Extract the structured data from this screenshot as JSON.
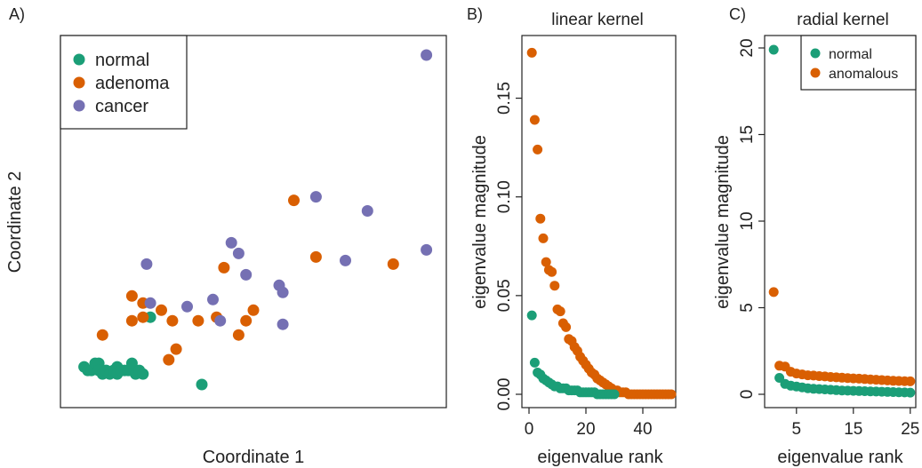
{
  "colors": {
    "normal": "#1b9e77",
    "adenoma": "#d95f02",
    "cancer": "#7570b3",
    "anomalous": "#d95f02"
  },
  "chart_data": [
    {
      "type": "scatter",
      "panel_label": "A)",
      "title": "",
      "xlabel": "Coordinate 1",
      "ylabel": "Coordinate 2",
      "legend_position": "top-left",
      "xlim": [
        0,
        100
      ],
      "ylim": [
        0,
        100
      ],
      "series": [
        {
          "name": "normal",
          "color": "#1b9e77",
          "points": [
            [
              4,
              9
            ],
            [
              5,
              8
            ],
            [
              6,
              8
            ],
            [
              7,
              10
            ],
            [
              8,
              10
            ],
            [
              8,
              8
            ],
            [
              9,
              7
            ],
            [
              10,
              8
            ],
            [
              11,
              7
            ],
            [
              12,
              8
            ],
            [
              13,
              9
            ],
            [
              13,
              7
            ],
            [
              14,
              8
            ],
            [
              15,
              8
            ],
            [
              16,
              8
            ],
            [
              17,
              10
            ],
            [
              18,
              7
            ],
            [
              19,
              8
            ],
            [
              20,
              7
            ],
            [
              22,
              23
            ],
            [
              36,
              4
            ]
          ]
        },
        {
          "name": "adenoma",
          "color": "#d95f02",
          "points": [
            [
              9,
              18
            ],
            [
              17,
              29
            ],
            [
              17,
              22
            ],
            [
              20,
              23
            ],
            [
              20,
              27
            ],
            [
              25,
              25
            ],
            [
              27,
              11
            ],
            [
              28,
              22
            ],
            [
              29,
              14
            ],
            [
              35,
              22
            ],
            [
              40,
              23
            ],
            [
              42,
              37
            ],
            [
              46,
              18
            ],
            [
              48,
              22
            ],
            [
              50,
              25
            ],
            [
              61,
              56
            ],
            [
              67,
              40
            ],
            [
              88,
              38
            ]
          ]
        },
        {
          "name": "cancer",
          "color": "#7570b3",
          "points": [
            [
              21,
              38
            ],
            [
              22,
              27
            ],
            [
              32,
              26
            ],
            [
              39,
              28
            ],
            [
              41,
              22
            ],
            [
              44,
              44
            ],
            [
              46,
              41
            ],
            [
              48,
              35
            ],
            [
              57,
              32
            ],
            [
              58,
              30
            ],
            [
              58,
              21
            ],
            [
              67,
              57
            ],
            [
              75,
              39
            ],
            [
              81,
              53
            ],
            [
              97,
              42
            ],
            [
              97,
              97
            ]
          ]
        }
      ]
    },
    {
      "type": "scatter",
      "panel_label": "B)",
      "title": "linear kernel",
      "xlabel": "eigenvalue rank",
      "ylabel": "eigenvalue magnitude",
      "xlim": [
        0,
        50
      ],
      "ylim": [
        0,
        0.175
      ],
      "xticks": [
        "0",
        "20",
        "40"
      ],
      "yticks": [
        "0.00",
        "0.05",
        "0.10",
        "0.15"
      ],
      "series": [
        {
          "name": "anomalous",
          "color": "#d95f02",
          "points": [
            [
              1,
              0.173
            ],
            [
              2,
              0.139
            ],
            [
              3,
              0.124
            ],
            [
              4,
              0.089
            ],
            [
              5,
              0.079
            ],
            [
              6,
              0.067
            ],
            [
              7,
              0.063
            ],
            [
              8,
              0.062
            ],
            [
              9,
              0.055
            ],
            [
              10,
              0.043
            ],
            [
              11,
              0.042
            ],
            [
              12,
              0.036
            ],
            [
              13,
              0.034
            ],
            [
              14,
              0.028
            ],
            [
              15,
              0.027
            ],
            [
              16,
              0.024
            ],
            [
              17,
              0.022
            ],
            [
              18,
              0.019
            ],
            [
              19,
              0.017
            ],
            [
              20,
              0.015
            ],
            [
              21,
              0.013
            ],
            [
              22,
              0.011
            ],
            [
              23,
              0.01
            ],
            [
              24,
              0.008
            ],
            [
              25,
              0.007
            ],
            [
              26,
              0.006
            ],
            [
              27,
              0.005
            ],
            [
              28,
              0.004
            ],
            [
              29,
              0.003
            ],
            [
              30,
              0.002
            ],
            [
              31,
              0.002
            ],
            [
              32,
              0.001
            ],
            [
              33,
              0.001
            ],
            [
              34,
              0.001
            ],
            [
              35,
              0.0
            ],
            [
              36,
              0.0
            ],
            [
              37,
              0.0
            ],
            [
              38,
              0.0
            ],
            [
              39,
              0.0
            ],
            [
              40,
              0.0
            ],
            [
              41,
              0.0
            ],
            [
              42,
              0.0
            ],
            [
              43,
              0.0
            ],
            [
              44,
              0.0
            ],
            [
              45,
              0.0
            ],
            [
              46,
              0.0
            ],
            [
              47,
              0.0
            ],
            [
              48,
              0.0
            ],
            [
              49,
              0.0
            ],
            [
              50,
              0.0
            ]
          ]
        },
        {
          "name": "normal",
          "color": "#1b9e77",
          "points": [
            [
              1,
              0.04
            ],
            [
              2,
              0.016
            ],
            [
              3,
              0.011
            ],
            [
              4,
              0.01
            ],
            [
              5,
              0.008
            ],
            [
              6,
              0.007
            ],
            [
              7,
              0.006
            ],
            [
              8,
              0.005
            ],
            [
              9,
              0.004
            ],
            [
              10,
              0.004
            ],
            [
              11,
              0.003
            ],
            [
              12,
              0.003
            ],
            [
              13,
              0.003
            ],
            [
              14,
              0.002
            ],
            [
              15,
              0.002
            ],
            [
              16,
              0.002
            ],
            [
              17,
              0.002
            ],
            [
              18,
              0.001
            ],
            [
              19,
              0.001
            ],
            [
              20,
              0.001
            ],
            [
              21,
              0.001
            ],
            [
              22,
              0.001
            ],
            [
              23,
              0.001
            ],
            [
              24,
              0.0
            ],
            [
              25,
              0.0
            ],
            [
              26,
              0.0
            ],
            [
              27,
              0.0
            ],
            [
              28,
              0.0
            ],
            [
              29,
              0.0
            ],
            [
              30,
              0.0
            ]
          ]
        }
      ]
    },
    {
      "type": "scatter",
      "panel_label": "C)",
      "title": "radial kernel",
      "xlabel": "eigenvalue rank",
      "ylabel": "eigenvalue magnitude",
      "legend_position": "top-right",
      "xlim": [
        0.5,
        25.5
      ],
      "ylim": [
        0,
        20
      ],
      "xticks": [
        "5",
        "15",
        "25"
      ],
      "yticks": [
        "0",
        "5",
        "10",
        "15",
        "20"
      ],
      "series": [
        {
          "name": "normal",
          "color": "#1b9e77",
          "points": [
            [
              1,
              19.9
            ],
            [
              2,
              0.95
            ],
            [
              3,
              0.6
            ],
            [
              4,
              0.5
            ],
            [
              5,
              0.45
            ],
            [
              6,
              0.4
            ],
            [
              7,
              0.35
            ],
            [
              8,
              0.32
            ],
            [
              9,
              0.3
            ],
            [
              10,
              0.28
            ],
            [
              11,
              0.26
            ],
            [
              12,
              0.24
            ],
            [
              13,
              0.22
            ],
            [
              14,
              0.21
            ],
            [
              15,
              0.2
            ],
            [
              16,
              0.19
            ],
            [
              17,
              0.18
            ],
            [
              18,
              0.17
            ],
            [
              19,
              0.16
            ],
            [
              20,
              0.15
            ],
            [
              21,
              0.14
            ],
            [
              22,
              0.13
            ],
            [
              23,
              0.12
            ],
            [
              24,
              0.11
            ],
            [
              25,
              0.1
            ]
          ]
        },
        {
          "name": "anomalous",
          "color": "#d95f02",
          "points": [
            [
              1,
              5.9
            ],
            [
              2,
              1.65
            ],
            [
              3,
              1.6
            ],
            [
              4,
              1.3
            ],
            [
              5,
              1.2
            ],
            [
              6,
              1.15
            ],
            [
              7,
              1.1
            ],
            [
              8,
              1.08
            ],
            [
              9,
              1.05
            ],
            [
              10,
              1.03
            ],
            [
              11,
              1.0
            ],
            [
              12,
              0.98
            ],
            [
              13,
              0.96
            ],
            [
              14,
              0.94
            ],
            [
              15,
              0.92
            ],
            [
              16,
              0.9
            ],
            [
              17,
              0.88
            ],
            [
              18,
              0.86
            ],
            [
              19,
              0.84
            ],
            [
              20,
              0.82
            ],
            [
              21,
              0.8
            ],
            [
              22,
              0.78
            ],
            [
              23,
              0.77
            ],
            [
              24,
              0.76
            ],
            [
              25,
              0.75
            ]
          ]
        }
      ]
    }
  ]
}
